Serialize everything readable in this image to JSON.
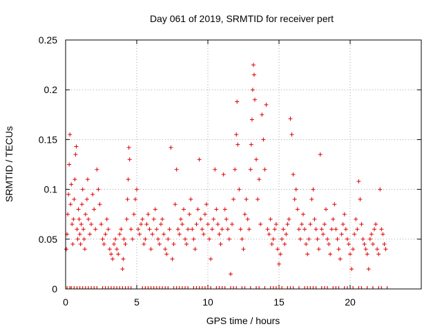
{
  "chart_data": {
    "type": "scatter",
    "title": "Day 061 of 2019, SRMTID for receiver pert",
    "xlabel": "GPS time / hours",
    "ylabel": "SRMTID / TECUs",
    "xlim": [
      0,
      25
    ],
    "ylim": [
      0,
      0.25
    ],
    "x_ticks": [
      0,
      5,
      10,
      15,
      20
    ],
    "x_tick_labels": [
      "0",
      "5",
      "10",
      "15",
      "20"
    ],
    "y_ticks": [
      0,
      0.05,
      0.1,
      0.15,
      0.2,
      0.25
    ],
    "y_tick_labels": [
      "0",
      "0.05",
      "0.1",
      "0.15",
      "0.2",
      "0.25"
    ],
    "grid": true,
    "marker": "+",
    "color": "#e00000",
    "series": [
      {
        "name": "SRMTID",
        "points": [
          [
            0.05,
            0.04
          ],
          [
            0.1,
            0.055
          ],
          [
            0.15,
            0.075
          ],
          [
            0.2,
            0.095
          ],
          [
            0.25,
            0.125
          ],
          [
            0.3,
            0.155
          ],
          [
            0.35,
            0.085
          ],
          [
            0.4,
            0.105
          ],
          [
            0.45,
            0.065
          ],
          [
            0.5,
            0.045
          ],
          [
            0.55,
            0.07
          ],
          [
            0.6,
            0.09
          ],
          [
            0.65,
            0.11
          ],
          [
            0.7,
            0.135
          ],
          [
            0.75,
            0.143
          ],
          [
            0.8,
            0.06
          ],
          [
            0.85,
            0.05
          ],
          [
            0.9,
            0.08
          ],
          [
            0.95,
            0.07
          ],
          [
            1.0,
            0.055
          ],
          [
            1.05,
            0.045
          ],
          [
            1.1,
            0.065
          ],
          [
            1.15,
            0.085
          ],
          [
            1.2,
            0.1
          ],
          [
            1.25,
            0.06
          ],
          [
            1.3,
            0.05
          ],
          [
            1.35,
            0.04
          ],
          [
            1.4,
            0.075
          ],
          [
            1.5,
            0.09
          ],
          [
            1.55,
            0.11
          ],
          [
            1.6,
            0.07
          ],
          [
            1.7,
            0.055
          ],
          [
            1.8,
            0.065
          ],
          [
            1.9,
            0.095
          ],
          [
            2.0,
            0.08
          ],
          [
            2.1,
            0.06
          ],
          [
            2.2,
            0.12
          ],
          [
            2.3,
            0.1
          ],
          [
            2.4,
            0.085
          ],
          [
            2.5,
            0.065
          ],
          [
            2.6,
            0.05
          ],
          [
            2.7,
            0.045
          ],
          [
            2.8,
            0.055
          ],
          [
            2.9,
            0.07
          ],
          [
            3.0,
            0.06
          ],
          [
            3.1,
            0.04
          ],
          [
            3.2,
            0.035
          ],
          [
            3.3,
            0.03
          ],
          [
            3.4,
            0.045
          ],
          [
            3.5,
            0.05
          ],
          [
            3.6,
            0.04
          ],
          [
            3.7,
            0.035
          ],
          [
            3.8,
            0.055
          ],
          [
            3.9,
            0.06
          ],
          [
            4.0,
            0.02
          ],
          [
            4.05,
            0.03
          ],
          [
            4.1,
            0.05
          ],
          [
            4.2,
            0.045
          ],
          [
            4.3,
            0.07
          ],
          [
            4.35,
            0.09
          ],
          [
            4.4,
            0.11
          ],
          [
            4.45,
            0.142
          ],
          [
            4.5,
            0.13
          ],
          [
            4.6,
            0.06
          ],
          [
            4.7,
            0.05
          ],
          [
            4.8,
            0.075
          ],
          [
            4.9,
            0.09
          ],
          [
            5.0,
            0.1
          ],
          [
            5.1,
            0.06
          ],
          [
            5.2,
            0.055
          ],
          [
            5.3,
            0.065
          ],
          [
            5.4,
            0.07
          ],
          [
            5.5,
            0.045
          ],
          [
            5.6,
            0.05
          ],
          [
            5.7,
            0.065
          ],
          [
            5.8,
            0.075
          ],
          [
            5.9,
            0.06
          ],
          [
            6.0,
            0.04
          ],
          [
            6.1,
            0.055
          ],
          [
            6.2,
            0.07
          ],
          [
            6.3,
            0.08
          ],
          [
            6.4,
            0.06
          ],
          [
            6.5,
            0.05
          ],
          [
            6.6,
            0.045
          ],
          [
            6.7,
            0.065
          ],
          [
            6.8,
            0.07
          ],
          [
            6.9,
            0.055
          ],
          [
            7.0,
            0.04
          ],
          [
            7.1,
            0.035
          ],
          [
            7.2,
            0.05
          ],
          [
            7.3,
            0.06
          ],
          [
            7.4,
            0.142
          ],
          [
            7.5,
            0.03
          ],
          [
            7.6,
            0.045
          ],
          [
            7.7,
            0.085
          ],
          [
            7.8,
            0.12
          ],
          [
            7.9,
            0.06
          ],
          [
            8.0,
            0.055
          ],
          [
            8.1,
            0.07
          ],
          [
            8.2,
            0.065
          ],
          [
            8.3,
            0.08
          ],
          [
            8.4,
            0.05
          ],
          [
            8.5,
            0.045
          ],
          [
            8.6,
            0.06
          ],
          [
            8.7,
            0.075
          ],
          [
            8.8,
            0.09
          ],
          [
            8.9,
            0.06
          ],
          [
            9.0,
            0.05
          ],
          [
            9.1,
            0.04
          ],
          [
            9.2,
            0.065
          ],
          [
            9.3,
            0.08
          ],
          [
            9.4,
            0.13
          ],
          [
            9.5,
            0.07
          ],
          [
            9.6,
            0.06
          ],
          [
            9.7,
            0.055
          ],
          [
            9.8,
            0.075
          ],
          [
            9.9,
            0.085
          ],
          [
            10.0,
            0.065
          ],
          [
            10.1,
            0.05
          ],
          [
            10.2,
            0.03
          ],
          [
            10.3,
            0.06
          ],
          [
            10.4,
            0.07
          ],
          [
            10.5,
            0.12
          ],
          [
            10.6,
            0.08
          ],
          [
            10.7,
            0.065
          ],
          [
            10.8,
            0.055
          ],
          [
            10.9,
            0.045
          ],
          [
            11.0,
            0.06
          ],
          [
            11.1,
            0.115
          ],
          [
            11.2,
            0.08
          ],
          [
            11.3,
            0.07
          ],
          [
            11.4,
            0.06
          ],
          [
            11.5,
            0.05
          ],
          [
            11.6,
            0.015
          ],
          [
            11.7,
            0.065
          ],
          [
            11.8,
            0.09
          ],
          [
            11.9,
            0.12
          ],
          [
            12.0,
            0.155
          ],
          [
            12.05,
            0.188
          ],
          [
            12.1,
            0.145
          ],
          [
            12.2,
            0.1
          ],
          [
            12.3,
            0.06
          ],
          [
            12.4,
            0.05
          ],
          [
            12.5,
            0.04
          ],
          [
            12.6,
            0.075
          ],
          [
            12.7,
            0.09
          ],
          [
            12.8,
            0.07
          ],
          [
            12.9,
            0.06
          ],
          [
            13.0,
            0.12
          ],
          [
            13.05,
            0.145
          ],
          [
            13.1,
            0.17
          ],
          [
            13.15,
            0.2
          ],
          [
            13.2,
            0.225
          ],
          [
            13.25,
            0.215
          ],
          [
            13.3,
            0.19
          ],
          [
            13.4,
            0.13
          ],
          [
            13.5,
            0.09
          ],
          [
            13.6,
            0.11
          ],
          [
            13.7,
            0.065
          ],
          [
            13.8,
            0.175
          ],
          [
            13.9,
            0.15
          ],
          [
            14.0,
            0.12
          ],
          [
            14.1,
            0.185
          ],
          [
            14.2,
            0.06
          ],
          [
            14.3,
            0.055
          ],
          [
            14.4,
            0.07
          ],
          [
            14.5,
            0.045
          ],
          [
            14.6,
            0.05
          ],
          [
            14.7,
            0.06
          ],
          [
            14.8,
            0.065
          ],
          [
            14.9,
            0.04
          ],
          [
            15.0,
            0.025
          ],
          [
            15.1,
            0.035
          ],
          [
            15.2,
            0.05
          ],
          [
            15.3,
            0.06
          ],
          [
            15.4,
            0.045
          ],
          [
            15.5,
            0.055
          ],
          [
            15.6,
            0.065
          ],
          [
            15.7,
            0.07
          ],
          [
            15.8,
            0.171
          ],
          [
            15.9,
            0.155
          ],
          [
            16.0,
            0.115
          ],
          [
            16.1,
            0.09
          ],
          [
            16.2,
            0.1
          ],
          [
            16.3,
            0.08
          ],
          [
            16.4,
            0.06
          ],
          [
            16.5,
            0.05
          ],
          [
            16.6,
            0.065
          ],
          [
            16.7,
            0.075
          ],
          [
            16.8,
            0.06
          ],
          [
            16.9,
            0.045
          ],
          [
            17.0,
            0.035
          ],
          [
            17.1,
            0.05
          ],
          [
            17.2,
            0.065
          ],
          [
            17.3,
            0.09
          ],
          [
            17.4,
            0.1
          ],
          [
            17.5,
            0.07
          ],
          [
            17.6,
            0.06
          ],
          [
            17.7,
            0.05
          ],
          [
            17.8,
            0.04
          ],
          [
            17.9,
            0.135
          ],
          [
            18.0,
            0.06
          ],
          [
            18.1,
            0.055
          ],
          [
            18.2,
            0.065
          ],
          [
            18.3,
            0.08
          ],
          [
            18.4,
            0.05
          ],
          [
            18.5,
            0.045
          ],
          [
            18.6,
            0.035
          ],
          [
            18.7,
            0.06
          ],
          [
            18.8,
            0.07
          ],
          [
            18.9,
            0.085
          ],
          [
            19.0,
            0.06
          ],
          [
            19.1,
            0.05
          ],
          [
            19.2,
            0.04
          ],
          [
            19.3,
            0.03
          ],
          [
            19.4,
            0.055
          ],
          [
            19.5,
            0.065
          ],
          [
            19.6,
            0.075
          ],
          [
            19.7,
            0.06
          ],
          [
            19.8,
            0.05
          ],
          [
            19.9,
            0.045
          ],
          [
            20.0,
            0.035
          ],
          [
            20.1,
            0.02
          ],
          [
            20.2,
            0.04
          ],
          [
            20.3,
            0.055
          ],
          [
            20.4,
            0.07
          ],
          [
            20.5,
            0.06
          ],
          [
            20.6,
            0.108
          ],
          [
            20.7,
            0.09
          ],
          [
            20.8,
            0.065
          ],
          [
            20.9,
            0.05
          ],
          [
            21.0,
            0.045
          ],
          [
            21.1,
            0.04
          ],
          [
            21.2,
            0.035
          ],
          [
            21.3,
            0.02
          ],
          [
            21.4,
            0.05
          ],
          [
            21.5,
            0.055
          ],
          [
            21.6,
            0.045
          ],
          [
            21.7,
            0.06
          ],
          [
            21.8,
            0.065
          ],
          [
            21.9,
            0.04
          ],
          [
            22.0,
            0.035
          ],
          [
            22.1,
            0.1
          ],
          [
            22.2,
            0.06
          ],
          [
            22.3,
            0.055
          ],
          [
            22.4,
            0.045
          ],
          [
            22.5,
            0.04
          ]
        ]
      }
    ],
    "zero_points_x": [
      0.1,
      0.3,
      0.4,
      0.6,
      0.8,
      1.0,
      1.2,
      1.4,
      1.6,
      1.8,
      2.0,
      2.2,
      2.6,
      2.8,
      3.0,
      3.2,
      3.4,
      3.6,
      3.8,
      4.0,
      4.2,
      4.4,
      4.6,
      5.4,
      5.6,
      5.8,
      6.0,
      6.2,
      6.4,
      6.6,
      6.8,
      7.0,
      7.2,
      7.6,
      7.8,
      8.0,
      8.2,
      8.4,
      8.6,
      9.0,
      9.2,
      9.4,
      9.6,
      9.8,
      10.0,
      10.2,
      10.6,
      10.8,
      11.0,
      11.2,
      11.6,
      11.8,
      12.0,
      12.4,
      12.6,
      13.0,
      13.4,
      13.6,
      14.0,
      14.4,
      14.6,
      14.8,
      15.0,
      15.2,
      15.6,
      15.8,
      16.0,
      16.4,
      16.8,
      17.0,
      17.2,
      17.4,
      17.6,
      18.0,
      18.2,
      18.4,
      18.8,
      19.0,
      19.2,
      19.6,
      19.8,
      20.2,
      20.6,
      20.8,
      21.2,
      21.6,
      22.0,
      22.2,
      22.6
    ]
  }
}
